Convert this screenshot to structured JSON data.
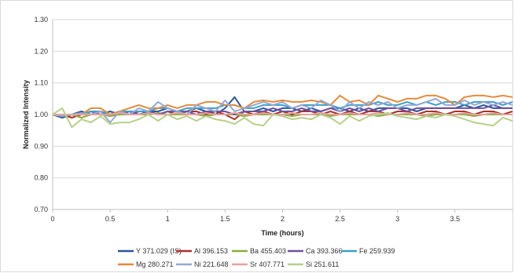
{
  "chart_data": {
    "type": "line",
    "title": "",
    "xlabel": "Time (hours)",
    "ylabel": "Normalized Intensity",
    "xlim": [
      0,
      4
    ],
    "ylim": [
      0.7,
      1.3
    ],
    "xticks": [
      0,
      0.5,
      1,
      1.5,
      2,
      2.5,
      3,
      3.5
    ],
    "xtick_labels": [
      "0",
      "0.5",
      "1",
      "1.5",
      "2",
      "2.5",
      "3",
      "3.5"
    ],
    "yticks": [
      0.7,
      0.8,
      0.9,
      1.0,
      1.1,
      1.2,
      1.3
    ],
    "ytick_labels": [
      "0.70",
      "0.80",
      "0.90",
      "1.00",
      "1.10",
      "1.20",
      "1.30"
    ],
    "grid": "horizontal",
    "legend_position": "bottom",
    "x": [
      0,
      0.083,
      0.167,
      0.25,
      0.333,
      0.417,
      0.5,
      0.583,
      0.667,
      0.75,
      0.833,
      0.917,
      1.0,
      1.083,
      1.167,
      1.25,
      1.333,
      1.417,
      1.5,
      1.583,
      1.667,
      1.75,
      1.833,
      1.917,
      2.0,
      2.083,
      2.167,
      2.25,
      2.333,
      2.417,
      2.5,
      2.583,
      2.667,
      2.75,
      2.833,
      2.917,
      3.0,
      3.083,
      3.167,
      3.25,
      3.333,
      3.417,
      3.5,
      3.583,
      3.667,
      3.75,
      3.833,
      3.917,
      4.0
    ],
    "series": [
      {
        "name": "Y 371.029 (IS)",
        "color": "#2e5597",
        "values": [
          1.0,
          0.99,
          1.0,
          1.01,
          1.0,
          1.0,
          1.01,
          1.0,
          1.01,
          1.0,
          1.01,
          1.01,
          1.02,
          1.01,
          1.01,
          1.02,
          1.01,
          1.0,
          1.02,
          1.055,
          1.01,
          1.01,
          1.02,
          1.01,
          1.02,
          1.02,
          1.01,
          1.02,
          1.01,
          1.02,
          1.02,
          1.01,
          1.02,
          1.01,
          1.02,
          1.02,
          1.02,
          1.02,
          1.01,
          1.02,
          1.02,
          1.02,
          1.02,
          1.03,
          1.02,
          1.03,
          1.02,
          1.02,
          1.02
        ]
      },
      {
        "name": "Al 396.153",
        "color": "#a9322c",
        "values": [
          1.0,
          1.0,
          0.99,
          1.0,
          1.0,
          1.01,
          1.0,
          1.0,
          1.0,
          1.01,
          1.01,
          1.0,
          1.01,
          1.0,
          1.01,
          1.01,
          1.0,
          1.01,
          1.0,
          0.985,
          1.01,
          1.0,
          1.01,
          1.0,
          1.01,
          1.0,
          1.01,
          1.01,
          1.0,
          1.01,
          1.0,
          1.01,
          1.0,
          1.01,
          1.01,
          1.0,
          1.01,
          1.01,
          1.0,
          1.01,
          1.01,
          1.0,
          1.01,
          1.01,
          1.0,
          1.01,
          1.01,
          1.0,
          1.01
        ]
      },
      {
        "name": "Ba 455.403",
        "color": "#8cad3c",
        "values": [
          1.0,
          0.995,
          1.0,
          0.99,
          1.0,
          1.0,
          0.995,
          1.0,
          1.0,
          1.0,
          1.0,
          1.005,
          1.0,
          1.0,
          1.0,
          1.0,
          0.995,
          1.0,
          1.0,
          1.0,
          0.995,
          1.0,
          1.0,
          1.0,
          1.0,
          0.995,
          1.0,
          1.0,
          1.0,
          0.995,
          1.0,
          1.0,
          1.0,
          1.0,
          0.995,
          1.0,
          1.0,
          1.0,
          1.0,
          0.995,
          1.0,
          1.0,
          1.0,
          1.0,
          0.995,
          1.0,
          1.0,
          1.0,
          1.0
        ]
      },
      {
        "name": "Ca 393.366",
        "color": "#7150a0",
        "values": [
          1.0,
          1.0,
          1.0,
          1.0,
          1.01,
          1.0,
          1.0,
          1.01,
          1.0,
          1.01,
          1.01,
          1.0,
          1.01,
          1.01,
          1.01,
          1.0,
          1.01,
          1.01,
          1.01,
          1.0,
          1.01,
          1.01,
          1.01,
          1.02,
          1.01,
          1.01,
          1.02,
          1.01,
          1.01,
          1.02,
          1.01,
          1.02,
          1.01,
          1.02,
          1.01,
          1.02,
          1.02,
          1.01,
          1.02,
          1.02,
          1.02,
          1.02,
          1.02,
          1.02,
          1.02,
          1.02,
          1.03,
          1.02,
          1.02
        ]
      },
      {
        "name": "Fe 259.939",
        "color": "#3e9ec8",
        "values": [
          1.0,
          1.0,
          1.0,
          1.0,
          1.01,
          1.01,
          1.0,
          1.01,
          1.01,
          1.01,
          1.01,
          1.02,
          1.02,
          1.01,
          1.02,
          1.02,
          1.02,
          1.02,
          1.03,
          1.03,
          1.02,
          1.02,
          1.03,
          1.03,
          1.03,
          1.02,
          1.03,
          1.03,
          1.03,
          1.03,
          1.02,
          1.03,
          1.03,
          1.03,
          1.04,
          1.03,
          1.03,
          1.04,
          1.03,
          1.04,
          1.03,
          1.04,
          1.04,
          1.03,
          1.04,
          1.04,
          1.04,
          1.03,
          1.04
        ]
      },
      {
        "name": "Mg 280.271",
        "color": "#e48a3a",
        "values": [
          1.0,
          1.0,
          1.0,
          1.0,
          1.02,
          1.02,
          1.0,
          1.01,
          1.02,
          1.03,
          1.02,
          1.02,
          1.03,
          1.02,
          1.03,
          1.03,
          1.04,
          1.04,
          1.03,
          1.03,
          1.02,
          1.04,
          1.045,
          1.04,
          1.045,
          1.04,
          1.04,
          1.045,
          1.04,
          1.03,
          1.06,
          1.04,
          1.045,
          1.03,
          1.06,
          1.05,
          1.04,
          1.05,
          1.05,
          1.06,
          1.06,
          1.05,
          1.03,
          1.055,
          1.06,
          1.06,
          1.055,
          1.06,
          1.055
        ]
      },
      {
        "name": "Ni 221.648",
        "color": "#93a9d2",
        "values": [
          1.0,
          0.995,
          1.0,
          1.005,
          1.0,
          1.01,
          0.975,
          1.01,
          1.0,
          1.02,
          1.01,
          1.04,
          1.02,
          1.01,
          1.0,
          1.03,
          1.02,
          1.01,
          1.045,
          1.01,
          1.02,
          1.03,
          1.04,
          1.03,
          1.04,
          1.02,
          1.03,
          1.02,
          1.045,
          1.03,
          1.01,
          1.04,
          1.02,
          1.04,
          1.03,
          1.04,
          1.02,
          1.03,
          1.03,
          1.04,
          1.05,
          1.03,
          1.03,
          1.045,
          1.03,
          1.04,
          1.03,
          1.04,
          1.03
        ]
      },
      {
        "name": "Sr 407.771",
        "color": "#e8a0a0",
        "values": [
          1.0,
          1.0,
          1.0,
          1.0,
          1.0,
          1.0,
          1.0,
          1.005,
          1.0,
          1.0,
          1.005,
          1.0,
          1.0,
          1.005,
          1.0,
          1.0,
          1.005,
          1.0,
          1.0,
          1.005,
          1.0,
          1.0,
          1.005,
          1.0,
          1.0,
          1.005,
          1.0,
          1.0,
          1.005,
          1.0,
          1.0,
          1.005,
          1.0,
          1.0,
          1.005,
          1.0,
          1.0,
          1.005,
          1.0,
          1.0,
          1.005,
          1.0,
          1.0,
          1.005,
          1.0,
          1.0,
          1.005,
          1.0,
          1.0
        ]
      },
      {
        "name": "Si 251.611",
        "color": "#b6d08a",
        "values": [
          1.0,
          1.02,
          0.96,
          0.985,
          0.975,
          0.995,
          0.97,
          0.975,
          0.975,
          0.985,
          1.0,
          0.98,
          1.0,
          0.985,
          0.995,
          0.98,
          0.995,
          0.985,
          0.98,
          0.97,
          0.99,
          0.97,
          0.965,
          1.0,
          0.995,
          0.985,
          0.99,
          0.985,
          1.0,
          0.99,
          0.97,
          0.995,
          0.98,
          0.995,
          1.0,
          1.005,
          0.995,
          0.99,
          0.985,
          0.995,
          0.99,
          1.0,
          0.995,
          0.985,
          0.975,
          0.97,
          0.965,
          0.99,
          0.98
        ]
      }
    ]
  }
}
